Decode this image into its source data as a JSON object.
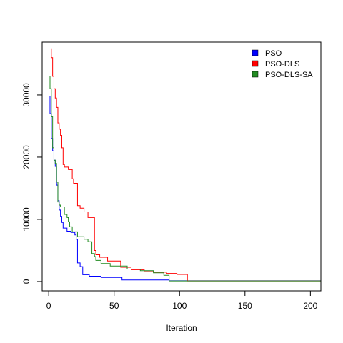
{
  "chart_data": {
    "type": "line",
    "xlabel": "Iteration",
    "ylabel": "",
    "xlim": [
      -5,
      208
    ],
    "ylim": [
      -1500,
      38500
    ],
    "x_ticks": [
      0,
      50,
      100,
      150,
      200
    ],
    "x_tick_labels": [
      "0",
      "50",
      "100",
      "150",
      "200"
    ],
    "y_ticks": [
      0,
      10000,
      20000,
      30000
    ],
    "y_tick_labels": [
      "0",
      "10000",
      "20000",
      "30000"
    ],
    "grid": false,
    "legend_position": "top-right",
    "series": [
      {
        "name": "PSO",
        "color": "#0000ff",
        "points": [
          [
            1,
            29800
          ],
          [
            1,
            27000
          ],
          [
            2,
            27000
          ],
          [
            2,
            23000
          ],
          [
            3,
            23000
          ],
          [
            3,
            21000
          ],
          [
            4,
            21000
          ],
          [
            4,
            19500
          ],
          [
            5,
            19500
          ],
          [
            5,
            18500
          ],
          [
            6,
            18500
          ],
          [
            6,
            15500
          ],
          [
            7,
            15500
          ],
          [
            7,
            13000
          ],
          [
            8,
            13000
          ],
          [
            8,
            11500
          ],
          [
            9,
            11500
          ],
          [
            9,
            10500
          ],
          [
            10,
            10500
          ],
          [
            10,
            9500
          ],
          [
            11,
            9500
          ],
          [
            11,
            8600
          ],
          [
            14,
            8600
          ],
          [
            14,
            8100
          ],
          [
            17,
            8100
          ],
          [
            17,
            7900
          ],
          [
            20,
            7900
          ],
          [
            20,
            7500
          ],
          [
            21,
            7500
          ],
          [
            21,
            6800
          ],
          [
            22,
            6800
          ],
          [
            22,
            3000
          ],
          [
            24,
            3000
          ],
          [
            24,
            2400
          ],
          [
            26,
            2400
          ],
          [
            26,
            1100
          ],
          [
            31,
            1100
          ],
          [
            31,
            850
          ],
          [
            40,
            850
          ],
          [
            40,
            650
          ],
          [
            56,
            650
          ],
          [
            56,
            250
          ],
          [
            92,
            250
          ],
          [
            92,
            120
          ],
          [
            208,
            120
          ]
        ]
      },
      {
        "name": "PSO-DLS",
        "color": "#ff0000",
        "points": [
          [
            2,
            37500
          ],
          [
            2,
            36000
          ],
          [
            3,
            36000
          ],
          [
            3,
            33000
          ],
          [
            4,
            33000
          ],
          [
            4,
            31000
          ],
          [
            5,
            31000
          ],
          [
            5,
            29500
          ],
          [
            6,
            29500
          ],
          [
            6,
            28000
          ],
          [
            7,
            28000
          ],
          [
            7,
            25500
          ],
          [
            8,
            25500
          ],
          [
            8,
            24500
          ],
          [
            9,
            24500
          ],
          [
            9,
            23500
          ],
          [
            10,
            23500
          ],
          [
            10,
            21500
          ],
          [
            11,
            21500
          ],
          [
            11,
            18800
          ],
          [
            12,
            18800
          ],
          [
            12,
            18400
          ],
          [
            15,
            18400
          ],
          [
            15,
            18000
          ],
          [
            18,
            18000
          ],
          [
            18,
            16500
          ],
          [
            19,
            16500
          ],
          [
            19,
            15800
          ],
          [
            22,
            15800
          ],
          [
            22,
            12200
          ],
          [
            24,
            12200
          ],
          [
            24,
            11800
          ],
          [
            27,
            11800
          ],
          [
            27,
            11200
          ],
          [
            30,
            11200
          ],
          [
            30,
            10300
          ],
          [
            35,
            10300
          ],
          [
            35,
            5000
          ],
          [
            36,
            5000
          ],
          [
            36,
            4300
          ],
          [
            39,
            4300
          ],
          [
            39,
            3900
          ],
          [
            45,
            3900
          ],
          [
            45,
            3300
          ],
          [
            55,
            3300
          ],
          [
            55,
            2300
          ],
          [
            63,
            2300
          ],
          [
            63,
            1900
          ],
          [
            73,
            1900
          ],
          [
            73,
            1700
          ],
          [
            80,
            1700
          ],
          [
            80,
            1500
          ],
          [
            90,
            1500
          ],
          [
            90,
            1300
          ],
          [
            98,
            1300
          ],
          [
            98,
            1150
          ],
          [
            106,
            1150
          ],
          [
            106,
            100
          ],
          [
            208,
            100
          ]
        ]
      },
      {
        "name": "PSO-DLS-SA",
        "color": "#228b22",
        "points": [
          [
            1,
            33000
          ],
          [
            1,
            31000
          ],
          [
            2,
            31000
          ],
          [
            2,
            26500
          ],
          [
            3,
            26500
          ],
          [
            3,
            21500
          ],
          [
            4,
            21500
          ],
          [
            4,
            19500
          ],
          [
            5,
            19500
          ],
          [
            5,
            19000
          ],
          [
            6,
            19000
          ],
          [
            6,
            16000
          ],
          [
            7,
            16000
          ],
          [
            7,
            12800
          ],
          [
            8,
            12800
          ],
          [
            8,
            12300
          ],
          [
            9,
            12300
          ],
          [
            9,
            12000
          ],
          [
            12,
            12000
          ],
          [
            12,
            10800
          ],
          [
            14,
            10800
          ],
          [
            14,
            10300
          ],
          [
            15,
            10300
          ],
          [
            15,
            9600
          ],
          [
            16,
            9600
          ],
          [
            16,
            8800
          ],
          [
            18,
            8800
          ],
          [
            18,
            8000
          ],
          [
            22,
            8000
          ],
          [
            22,
            7200
          ],
          [
            27,
            7200
          ],
          [
            27,
            6800
          ],
          [
            30,
            6800
          ],
          [
            30,
            6400
          ],
          [
            33,
            6400
          ],
          [
            33,
            4500
          ],
          [
            35,
            4500
          ],
          [
            35,
            4000
          ],
          [
            36,
            4000
          ],
          [
            36,
            3400
          ],
          [
            40,
            3400
          ],
          [
            40,
            2900
          ],
          [
            47,
            2900
          ],
          [
            47,
            2500
          ],
          [
            60,
            2500
          ],
          [
            60,
            2000
          ],
          [
            70,
            2000
          ],
          [
            70,
            1750
          ],
          [
            80,
            1750
          ],
          [
            80,
            1400
          ],
          [
            88,
            1400
          ],
          [
            88,
            1000
          ],
          [
            92,
            1000
          ],
          [
            92,
            100
          ],
          [
            208,
            100
          ]
        ]
      }
    ]
  }
}
